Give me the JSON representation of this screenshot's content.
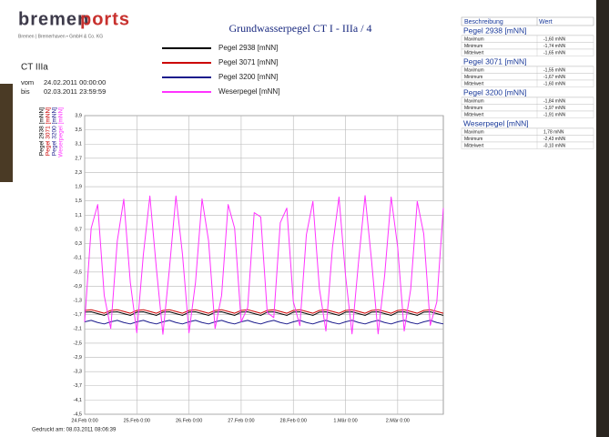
{
  "header": {
    "logo_bremen": "bremen",
    "logo_ports": "ports",
    "company": "Bremen | Bremerhaven • GmbH & Co. KG",
    "site": "CT IIIa",
    "from_label": "vom",
    "from": "24.02.2011  00:00:00",
    "to_label": "bis",
    "to": "02.03.2011  23:59:59"
  },
  "footer": {
    "printed": "Gedruckt am: 08.03.2011  08:06:39"
  },
  "chart_data": {
    "type": "line",
    "title": "Grundwasserpegel CT I - IIIa / 4",
    "x": [
      0,
      3,
      6,
      9,
      12,
      15,
      18,
      21,
      24,
      27,
      30,
      33,
      36,
      39,
      42,
      45,
      48,
      51,
      54,
      57,
      60,
      63,
      66,
      69,
      72,
      75,
      78,
      81,
      84,
      87,
      90,
      93,
      96,
      99,
      102,
      105,
      108,
      111,
      114,
      117,
      120,
      123,
      126,
      129,
      132,
      135,
      138,
      141,
      144,
      147,
      150,
      153,
      156,
      159,
      162,
      165
    ],
    "xlim": [
      0,
      165
    ],
    "xticks": [
      {
        "value": 0,
        "label": "24.Feb 0:00"
      },
      {
        "value": 24,
        "label": "25.Feb 0:00"
      },
      {
        "value": 48,
        "label": "26.Feb 0:00"
      },
      {
        "value": 72,
        "label": "27.Feb 0:00"
      },
      {
        "value": 96,
        "label": "28.Feb 0:00"
      },
      {
        "value": 120,
        "label": "1.Mär 0:00"
      },
      {
        "value": 144,
        "label": "2.Mär 0:00"
      }
    ],
    "ylim": [
      -4.5,
      3.9
    ],
    "yticks": [
      {
        "value": 3.9,
        "label": "3,9"
      },
      {
        "value": 3.5,
        "label": "3,5"
      },
      {
        "value": 3.1,
        "label": "3,1"
      },
      {
        "value": 2.7,
        "label": "2,7"
      },
      {
        "value": 2.3,
        "label": "2,3"
      },
      {
        "value": 1.9,
        "label": "1,9"
      },
      {
        "value": 1.5,
        "label": "1,5"
      },
      {
        "value": 1.1,
        "label": "1,1"
      },
      {
        "value": 0.7,
        "label": "0,7"
      },
      {
        "value": 0.3,
        "label": "0,3"
      },
      {
        "value": -0.1,
        "label": "-0,1"
      },
      {
        "value": -0.5,
        "label": "-0,5"
      },
      {
        "value": -0.9,
        "label": "-0,9"
      },
      {
        "value": -1.3,
        "label": "-1,3"
      },
      {
        "value": -1.7,
        "label": "-1,7"
      },
      {
        "value": -2.1,
        "label": "-2,1"
      },
      {
        "value": -2.5,
        "label": "-2,5"
      },
      {
        "value": -2.9,
        "label": "-2,9"
      },
      {
        "value": -3.3,
        "label": "-3,3"
      },
      {
        "value": -3.7,
        "label": "-3,7"
      },
      {
        "value": -4.1,
        "label": "-4,1"
      },
      {
        "value": -4.5,
        "label": "-4,5"
      }
    ],
    "grid": true,
    "series": [
      {
        "name": "Pegel 2938 [mNN]",
        "color": "#000000",
        "values": [
          -1.63,
          -1.62,
          -1.67,
          -1.72,
          -1.63,
          -1.62,
          -1.67,
          -1.72,
          -1.63,
          -1.62,
          -1.67,
          -1.72,
          -1.63,
          -1.62,
          -1.67,
          -1.72,
          -1.63,
          -1.62,
          -1.67,
          -1.72,
          -1.63,
          -1.62,
          -1.67,
          -1.72,
          -1.63,
          -1.62,
          -1.67,
          -1.72,
          -1.63,
          -1.62,
          -1.67,
          -1.72,
          -1.63,
          -1.62,
          -1.67,
          -1.72,
          -1.63,
          -1.62,
          -1.67,
          -1.72,
          -1.63,
          -1.62,
          -1.67,
          -1.72,
          -1.63,
          -1.62,
          -1.67,
          -1.72,
          -1.63,
          -1.62,
          -1.67,
          -1.72,
          -1.63,
          -1.62,
          -1.67,
          -1.72
        ]
      },
      {
        "name": "Pegel 3071 [mNN]",
        "color": "#cc0000",
        "values": [
          -1.58,
          -1.56,
          -1.61,
          -1.66,
          -1.58,
          -1.56,
          -1.61,
          -1.66,
          -1.58,
          -1.56,
          -1.61,
          -1.66,
          -1.58,
          -1.56,
          -1.61,
          -1.66,
          -1.58,
          -1.56,
          -1.61,
          -1.66,
          -1.58,
          -1.56,
          -1.61,
          -1.66,
          -1.58,
          -1.56,
          -1.61,
          -1.66,
          -1.58,
          -1.56,
          -1.61,
          -1.66,
          -1.58,
          -1.56,
          -1.61,
          -1.66,
          -1.58,
          -1.56,
          -1.61,
          -1.66,
          -1.58,
          -1.56,
          -1.61,
          -1.66,
          -1.58,
          -1.56,
          -1.61,
          -1.66,
          -1.58,
          -1.56,
          -1.61,
          -1.66,
          -1.58,
          -1.56,
          -1.61,
          -1.66
        ]
      },
      {
        "name": "Pegel 3200 [mNN]",
        "color": "#1a1a8c",
        "values": [
          -1.9,
          -1.86,
          -1.92,
          -1.96,
          -1.9,
          -1.86,
          -1.92,
          -1.96,
          -1.9,
          -1.86,
          -1.92,
          -1.96,
          -1.9,
          -1.86,
          -1.92,
          -1.96,
          -1.9,
          -1.86,
          -1.92,
          -1.96,
          -1.9,
          -1.86,
          -1.92,
          -1.96,
          -1.9,
          -1.86,
          -1.92,
          -1.96,
          -1.9,
          -1.86,
          -1.92,
          -1.96,
          -1.9,
          -1.86,
          -1.92,
          -1.96,
          -1.9,
          -1.86,
          -1.92,
          -1.96,
          -1.9,
          -1.86,
          -1.92,
          -1.96,
          -1.9,
          -1.86,
          -1.92,
          -1.96,
          -1.9,
          -1.86,
          -1.92,
          -1.96,
          -1.9,
          -1.86,
          -1.92,
          -1.96
        ]
      },
      {
        "name": "Weserpegel [mNN]",
        "color": "#ff33ff",
        "values": [
          -1.9,
          0.73,
          1.4,
          -1.16,
          -2.09,
          0.37,
          1.55,
          -0.79,
          -2.21,
          -0.01,
          1.64,
          -0.4,
          -2.25,
          -0.4,
          1.64,
          0.0,
          -2.21,
          -0.79,
          1.56,
          0.38,
          -2.09,
          -1.16,
          1.4,
          0.73,
          -1.9,
          -1.5,
          1.17,
          1.05,
          -1.64,
          -1.78,
          0.89,
          1.3,
          -1.33,
          -2.01,
          0.55,
          1.49,
          -0.97,
          -2.16,
          0.19,
          1.61,
          -0.59,
          -2.24,
          -0.21,
          1.65,
          -0.19,
          -2.24,
          -0.6,
          1.61,
          0.2,
          -2.16,
          -0.98,
          1.49,
          0.57,
          -2.0,
          -1.34,
          1.3
        ]
      }
    ]
  },
  "stats_table": {
    "columns": [
      "Beschreibung",
      "Wert"
    ],
    "groups": [
      {
        "name": "Pegel 2938 [mNN]",
        "rows": [
          [
            "Maximum",
            "-1,60 mNN"
          ],
          [
            "Minimum",
            "-1,74 mNN"
          ],
          [
            "Mittelwert",
            "-1,65 mNN"
          ]
        ]
      },
      {
        "name": "Pegel 3071 [mNN]",
        "rows": [
          [
            "Maximum",
            "-1,55 mNN"
          ],
          [
            "Minimum",
            "-1,67 mNN"
          ],
          [
            "Mittelwert",
            "-1,60 mNN"
          ]
        ]
      },
      {
        "name": "Pegel 3200 [mNN]",
        "rows": [
          [
            "Maximum",
            "-1,84 mNN"
          ],
          [
            "Minimum",
            "-1,97 mNN"
          ],
          [
            "Mittelwert",
            "-1,91 mNN"
          ]
        ]
      },
      {
        "name": "Weserpegel [mNN]",
        "rows": [
          [
            "Maximum",
            "1,78 mNN"
          ],
          [
            "Minimum",
            "-2,43 mNN"
          ],
          [
            "Mittelwert",
            "-0,10 mNN"
          ]
        ]
      }
    ]
  }
}
